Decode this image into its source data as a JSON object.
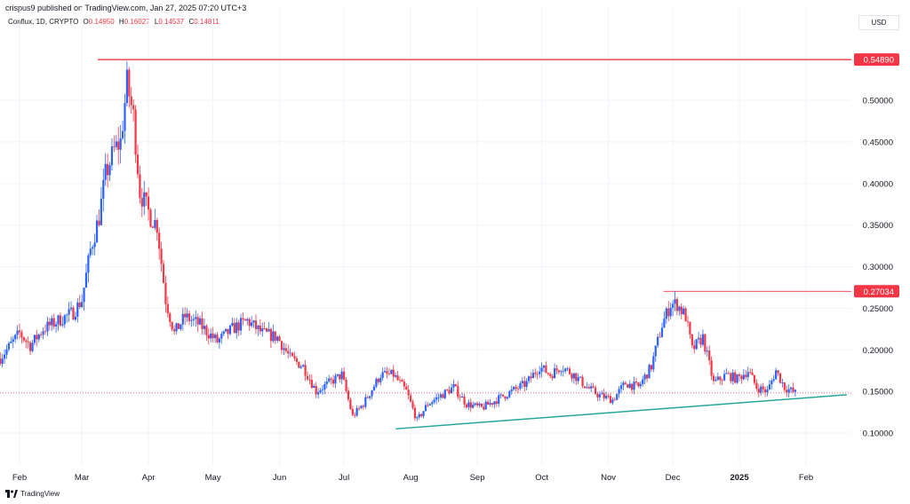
{
  "publisher": "crispus9 published on TradingView.com, Jan 27, 2025 07:20 UTC+3",
  "legend": {
    "symbol": "Conflux, 1D, CRYPTO",
    "open_key": "O",
    "open": "0.14950",
    "high_key": "H",
    "high": "0.16027",
    "low_key": "L",
    "low": "0.14537",
    "close_key": "C",
    "close": "0.14811"
  },
  "currency": "USD",
  "footer": {
    "brand": "TradingView",
    "logo_icon": "tradingview-logo-icon"
  },
  "colors": {
    "up": "#2962ff",
    "down": "#f23645",
    "resistance": "#f23645",
    "trendline": "#26a69a",
    "current_price_line": "#f23645"
  },
  "chart_data": {
    "type": "candlestick",
    "x_tick_labels": [
      "Feb",
      "Mar",
      "Apr",
      "May",
      "Jun",
      "Jul",
      "Aug",
      "Sep",
      "Oct",
      "Nov",
      "Dec",
      "2025",
      "Feb"
    ],
    "y_tick_labels": [
      "0.10000",
      "0.15000",
      "0.20000",
      "0.25000",
      "0.30000",
      "0.35000",
      "0.40000",
      "0.45000",
      "0.50000"
    ],
    "ylim": [
      0.085,
      0.6
    ],
    "horizontal_levels": [
      {
        "value": 0.5489,
        "label": "0.54890",
        "from_date": "2024-03-22"
      },
      {
        "value": 0.27034,
        "label": "0.27034",
        "from_date": "2024-12-02"
      }
    ],
    "current_price": {
      "value": 0.14811
    },
    "trendline": {
      "from": [
        "2024-07-25",
        0.105
      ],
      "to": [
        "2025-02-20",
        0.146
      ]
    },
    "price_path": [
      [
        "2024-01-23",
        0.19
      ],
      [
        "2024-02-01",
        0.22
      ],
      [
        "2024-02-06",
        0.205
      ],
      [
        "2024-02-12",
        0.225
      ],
      [
        "2024-02-19",
        0.235
      ],
      [
        "2024-02-26",
        0.245
      ],
      [
        "2024-03-01",
        0.26
      ],
      [
        "2024-03-05",
        0.32
      ],
      [
        "2024-03-09",
        0.36
      ],
      [
        "2024-03-12",
        0.41
      ],
      [
        "2024-03-16",
        0.44
      ],
      [
        "2024-03-19",
        0.45
      ],
      [
        "2024-03-22",
        0.52
      ],
      [
        "2024-03-25",
        0.48
      ],
      [
        "2024-03-28",
        0.39
      ],
      [
        "2024-04-02",
        0.36
      ],
      [
        "2024-04-05",
        0.35
      ],
      [
        "2024-04-09",
        0.26
      ],
      [
        "2024-04-13",
        0.22
      ],
      [
        "2024-04-18",
        0.24
      ],
      [
        "2024-04-25",
        0.23
      ],
      [
        "2024-05-03",
        0.21
      ],
      [
        "2024-05-10",
        0.225
      ],
      [
        "2024-05-17",
        0.235
      ],
      [
        "2024-05-24",
        0.22
      ],
      [
        "2024-05-31",
        0.215
      ],
      [
        "2024-06-06",
        0.19
      ],
      [
        "2024-06-12",
        0.18
      ],
      [
        "2024-06-18",
        0.15
      ],
      [
        "2024-06-24",
        0.16
      ],
      [
        "2024-06-30",
        0.17
      ],
      [
        "2024-07-05",
        0.12
      ],
      [
        "2024-07-10",
        0.135
      ],
      [
        "2024-07-18",
        0.17
      ],
      [
        "2024-07-24",
        0.17
      ],
      [
        "2024-07-30",
        0.15
      ],
      [
        "2024-08-04",
        0.115
      ],
      [
        "2024-08-09",
        0.135
      ],
      [
        "2024-08-15",
        0.145
      ],
      [
        "2024-08-21",
        0.155
      ],
      [
        "2024-08-27",
        0.135
      ],
      [
        "2024-09-03",
        0.13
      ],
      [
        "2024-09-10",
        0.14
      ],
      [
        "2024-09-17",
        0.15
      ],
      [
        "2024-09-24",
        0.16
      ],
      [
        "2024-09-30",
        0.18
      ],
      [
        "2024-10-05",
        0.17
      ],
      [
        "2024-10-10",
        0.18
      ],
      [
        "2024-10-16",
        0.17
      ],
      [
        "2024-10-22",
        0.155
      ],
      [
        "2024-10-28",
        0.145
      ],
      [
        "2024-11-03",
        0.14
      ],
      [
        "2024-11-09",
        0.16
      ],
      [
        "2024-11-15",
        0.155
      ],
      [
        "2024-11-21",
        0.18
      ],
      [
        "2024-11-26",
        0.23
      ],
      [
        "2024-11-30",
        0.255
      ],
      [
        "2024-12-03",
        0.255
      ],
      [
        "2024-12-07",
        0.24
      ],
      [
        "2024-12-10",
        0.2
      ],
      [
        "2024-12-15",
        0.215
      ],
      [
        "2024-12-20",
        0.16
      ],
      [
        "2024-12-26",
        0.17
      ],
      [
        "2024-12-31",
        0.165
      ],
      [
        "2025-01-05",
        0.175
      ],
      [
        "2025-01-09",
        0.155
      ],
      [
        "2025-01-14",
        0.15
      ],
      [
        "2025-01-18",
        0.175
      ],
      [
        "2025-01-22",
        0.155
      ],
      [
        "2025-01-27",
        0.148
      ]
    ]
  }
}
